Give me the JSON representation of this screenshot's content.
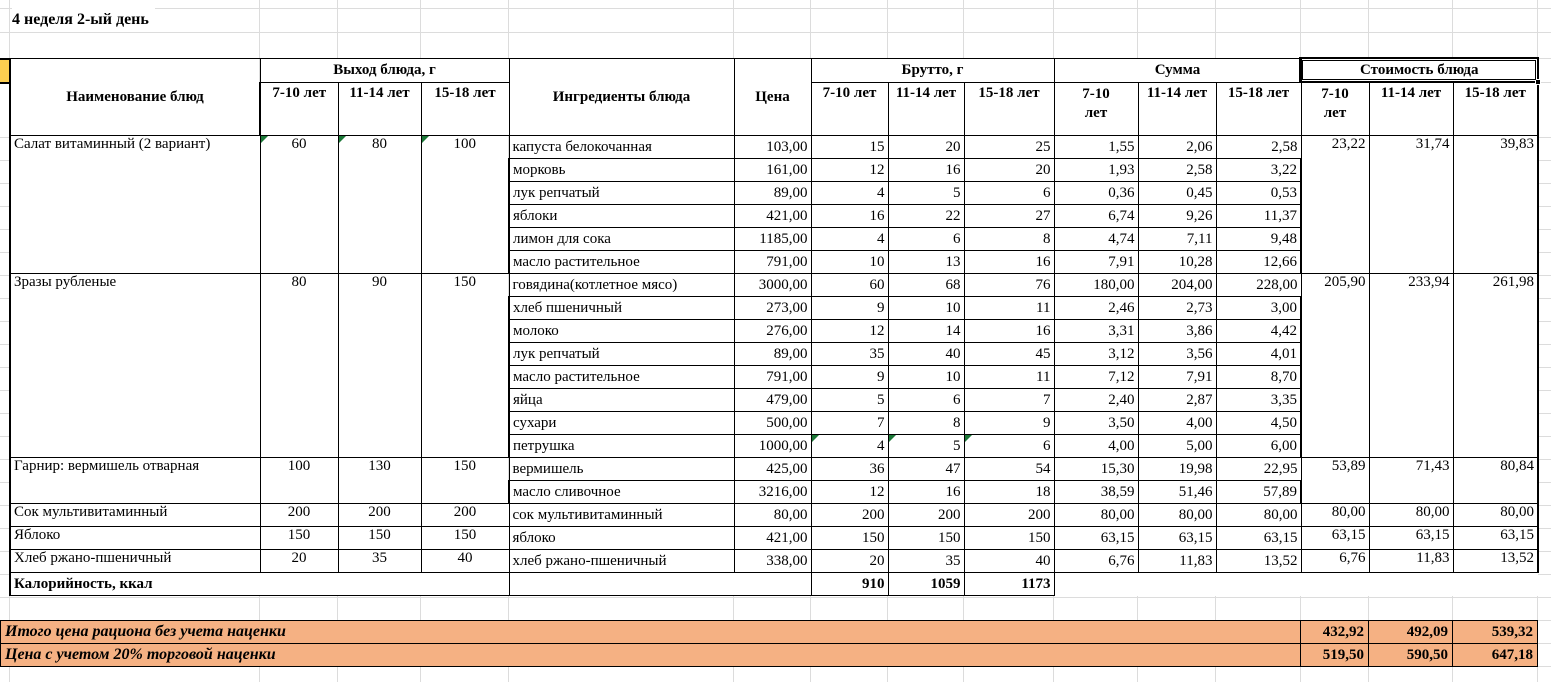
{
  "title": "4 неделя 2-ый день",
  "header": {
    "name": "Наименование блюд",
    "output": "Выход блюда, г",
    "ingredients": "Ингредиенты блюда",
    "price": "Цена",
    "brutto": "Брутто, г",
    "summa": "Сумма",
    "cost": "Стоимость блюда",
    "age_groups": [
      "7-10 лет",
      "11-14 лет",
      "15-18 лет"
    ]
  },
  "selection": {
    "target": "Стоимость блюда"
  },
  "dishes": [
    {
      "name": "Салат витаминный (2 вариант)",
      "output": [
        "60",
        "80",
        "100"
      ],
      "output_flagged": true,
      "cost": [
        "23,22",
        "31,74",
        "39,83"
      ],
      "ingredients": [
        {
          "name": "капуста белокочанная",
          "price": "103,00",
          "brutto": [
            "15",
            "20",
            "25"
          ],
          "summa": [
            "1,55",
            "2,06",
            "2,58"
          ]
        },
        {
          "name": "морковь",
          "price": "161,00",
          "brutto": [
            "12",
            "16",
            "20"
          ],
          "summa": [
            "1,93",
            "2,58",
            "3,22"
          ]
        },
        {
          "name": "лук репчатый",
          "price": "89,00",
          "brutto": [
            "4",
            "5",
            "6"
          ],
          "summa": [
            "0,36",
            "0,45",
            "0,53"
          ]
        },
        {
          "name": "яблоки",
          "price": "421,00",
          "brutto": [
            "16",
            "22",
            "27"
          ],
          "summa": [
            "6,74",
            "9,26",
            "11,37"
          ]
        },
        {
          "name": "лимон для сока",
          "price": "1185,00",
          "brutto": [
            "4",
            "6",
            "8"
          ],
          "summa": [
            "4,74",
            "7,11",
            "9,48"
          ]
        },
        {
          "name": "масло растительное",
          "price": "791,00",
          "brutto": [
            "10",
            "13",
            "16"
          ],
          "summa": [
            "7,91",
            "10,28",
            "12,66"
          ]
        }
      ]
    },
    {
      "name": "Зразы рубленые",
      "output": [
        "80",
        "90",
        "150"
      ],
      "output_flagged": false,
      "cost": [
        "205,90",
        "233,94",
        "261,98"
      ],
      "ingredients": [
        {
          "name": "говядина(котлетное мясо)",
          "price": "3000,00",
          "brutto": [
            "60",
            "68",
            "76"
          ],
          "summa": [
            "180,00",
            "204,00",
            "228,00"
          ]
        },
        {
          "name": "хлеб пшеничный",
          "price": "273,00",
          "brutto": [
            "9",
            "10",
            "11"
          ],
          "summa": [
            "2,46",
            "2,73",
            "3,00"
          ]
        },
        {
          "name": "молоко",
          "price": "276,00",
          "brutto": [
            "12",
            "14",
            "16"
          ],
          "summa": [
            "3,31",
            "3,86",
            "4,42"
          ]
        },
        {
          "name": "лук репчатый",
          "price": "89,00",
          "brutto": [
            "35",
            "40",
            "45"
          ],
          "summa": [
            "3,12",
            "3,56",
            "4,01"
          ]
        },
        {
          "name": "масло растительное",
          "price": "791,00",
          "brutto": [
            "9",
            "10",
            "11"
          ],
          "summa": [
            "7,12",
            "7,91",
            "8,70"
          ]
        },
        {
          "name": "яйца",
          "price": "479,00",
          "brutto": [
            "5",
            "6",
            "7"
          ],
          "summa": [
            "2,40",
            "2,87",
            "3,35"
          ]
        },
        {
          "name": "сухари",
          "price": "500,00",
          "brutto": [
            "7",
            "8",
            "9"
          ],
          "summa": [
            "3,50",
            "4,00",
            "4,50"
          ]
        },
        {
          "name": "петрушка",
          "price": "1000,00",
          "brutto": [
            "4",
            "5",
            "6"
          ],
          "brutto_flagged": true,
          "summa": [
            "4,00",
            "5,00",
            "6,00"
          ]
        }
      ]
    },
    {
      "name": "Гарнир: вермишель отварная",
      "output": [
        "100",
        "130",
        "150"
      ],
      "output_flagged": false,
      "cost": [
        "53,89",
        "71,43",
        "80,84"
      ],
      "ingredients": [
        {
          "name": "вермишель",
          "price": "425,00",
          "brutto": [
            "36",
            "47",
            "54"
          ],
          "summa": [
            "15,30",
            "19,98",
            "22,95"
          ]
        },
        {
          "name": "масло сливочное",
          "price": "3216,00",
          "brutto": [
            "12",
            "16",
            "18"
          ],
          "summa": [
            "38,59",
            "51,46",
            "57,89"
          ]
        }
      ]
    },
    {
      "name": "Сок мультивитаминный",
      "output": [
        "200",
        "200",
        "200"
      ],
      "output_flagged": false,
      "cost": [
        "80,00",
        "80,00",
        "80,00"
      ],
      "ingredients": [
        {
          "name": "сок мультивитаминный",
          "price": "80,00",
          "brutto": [
            "200",
            "200",
            "200"
          ],
          "summa": [
            "80,00",
            "80,00",
            "80,00"
          ]
        }
      ]
    },
    {
      "name": "Яблоко",
      "output": [
        "150",
        "150",
        "150"
      ],
      "output_flagged": false,
      "cost": [
        "63,15",
        "63,15",
        "63,15"
      ],
      "ingredients": [
        {
          "name": "яблоко",
          "price": "421,00",
          "brutto": [
            "150",
            "150",
            "150"
          ],
          "summa": [
            "63,15",
            "63,15",
            "63,15"
          ]
        }
      ]
    },
    {
      "name": "Хлеб ржано-пшеничный",
      "output": [
        "20",
        "35",
        "40"
      ],
      "output_flagged": false,
      "cost": [
        "6,76",
        "11,83",
        "13,52"
      ],
      "ingredients": [
        {
          "name": "хлеб ржано-пшеничный",
          "price": "338,00",
          "brutto": [
            "20",
            "35",
            "40"
          ],
          "summa": [
            "6,76",
            "11,83",
            "13,52"
          ]
        }
      ]
    }
  ],
  "calories": {
    "label": "Калорийность, ккал",
    "values": [
      "910",
      "1059",
      "1173"
    ]
  },
  "totals": [
    {
      "label": "Итого цена рациона без учета наценки",
      "values": [
        "432,92",
        "492,09",
        "539,32"
      ]
    },
    {
      "label": "Цена с учетом 20% торговой наценки",
      "values": [
        "519,50",
        "590,50",
        "647,18"
      ]
    }
  ],
  "colors": {
    "orange_fill": "#F5B183",
    "gold_fill": "#FCCE50",
    "flag_green": "#1B7837",
    "grid_gray": "#DCDCDC",
    "border_black": "#000000"
  }
}
